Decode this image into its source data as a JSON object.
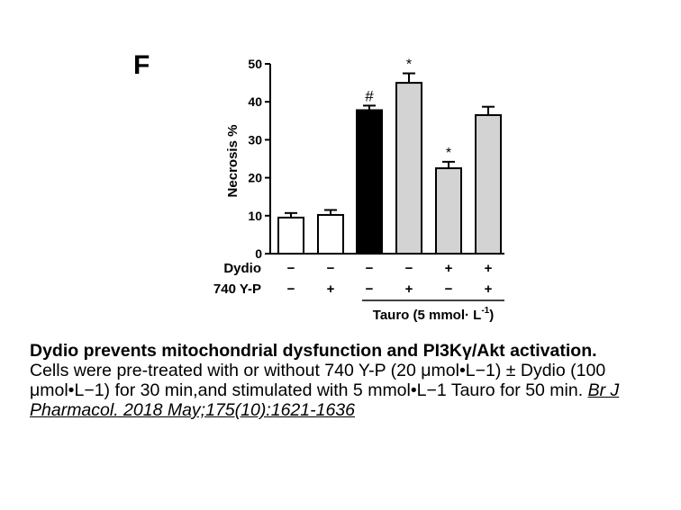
{
  "panel_label": "F",
  "chart_data": {
    "type": "bar",
    "ylabel": "Necrosis %",
    "ylim": [
      0,
      50
    ],
    "yticks": [
      "0",
      "10",
      "20",
      "30",
      "40",
      "50"
    ],
    "series": [
      {
        "values": [
          9.5,
          10.2,
          37.8,
          45.0,
          22.5,
          36.5
        ],
        "errors": [
          1.2,
          1.3,
          1.2,
          2.5,
          1.7,
          2.2
        ],
        "fills": [
          "#ffffff",
          "#ffffff",
          "#000000",
          "#d3d3d3",
          "#d3d3d3",
          "#d3d3d3"
        ],
        "annotations": [
          "",
          "",
          "#",
          "*",
          "*",
          ""
        ]
      }
    ],
    "conditions": [
      {
        "label": "Dydio",
        "signs": [
          "−",
          "−",
          "−",
          "−",
          "+",
          "+"
        ]
      },
      {
        "label": "740 Y-P",
        "signs": [
          "−",
          "+",
          "−",
          "+",
          "−",
          "+"
        ]
      }
    ],
    "group_label": "Tauro (5 mmol· L",
    "group_label_sup": "-1",
    "group_label_end": ")"
  },
  "caption": {
    "title": "Dydio prevents mitochondrial dysfunction and PI3Kγ/Akt activation.",
    "body": "Cells were pre-treated with or without 740 Y-P (20 μmol•L−1) ± Dydio (100 μmol•L−1) for 30 min,and stimulated with 5 mmol•L−1 Tauro for 50 min. ",
    "citation": "Br J Pharmacol. 2018 May;175(10):1621-1636"
  }
}
